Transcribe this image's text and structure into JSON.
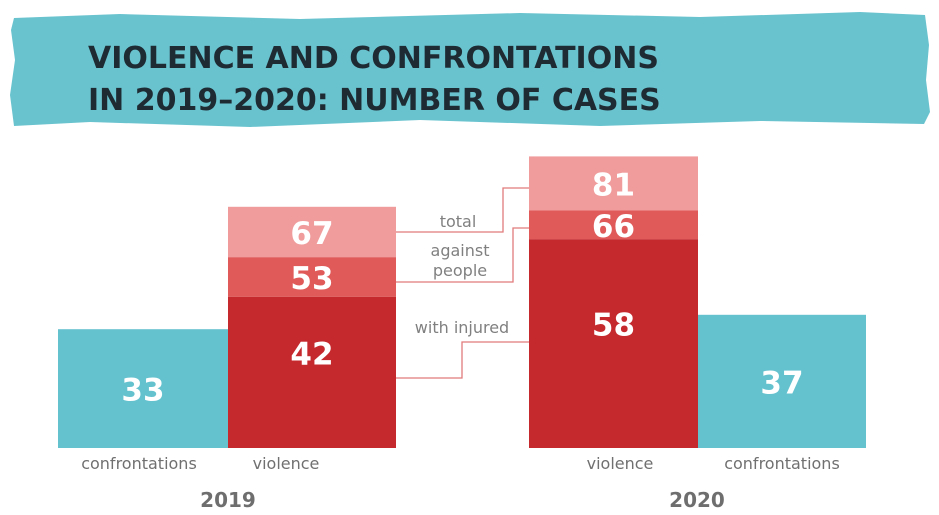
{
  "title": {
    "line1": "VIOLENCE AND CONFRONTATIONS",
    "line2": "IN 2019–2020: NUMBER OF CASES"
  },
  "colors": {
    "banner": "#69c3cf",
    "title_text": "#1f2b33",
    "confrontations": "#64c1ce",
    "violence_total": "#f09c9c",
    "violence_against_people": "#e05a5a",
    "violence_with_injured": "#c5292e",
    "annotation_line": "#e27b7b"
  },
  "chart_data": {
    "type": "bar",
    "groups": [
      {
        "year": "2019",
        "confrontations": 33,
        "violence": {
          "with_injured": 42,
          "against_people": 53,
          "total": 67
        }
      },
      {
        "year": "2020",
        "confrontations": 37,
        "violence": {
          "with_injured": 58,
          "against_people": 66,
          "total": 81
        }
      }
    ],
    "bar_labels": {
      "confrontations": "confrontations",
      "violence": "violence"
    },
    "annotations": {
      "total": "total",
      "against_people_line1": "against",
      "against_people_line2": "people",
      "with_injured": "with injured"
    }
  }
}
